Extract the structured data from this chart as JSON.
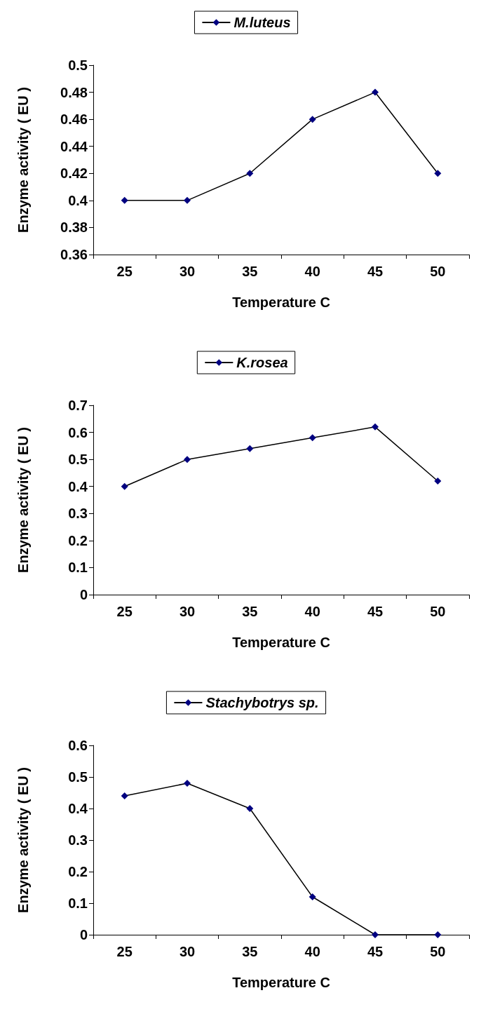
{
  "chart_data": [
    {
      "type": "line",
      "categories": [
        "25",
        "30",
        "35",
        "40",
        "45",
        "50"
      ],
      "xlabel": "Temperature C",
      "ylabel": "Enzyme activity ( EU )",
      "ylim": [
        0.36,
        0.5
      ],
      "yticks": [
        0.36,
        0.38,
        0.4,
        0.42,
        0.44,
        0.46,
        0.48,
        0.5
      ],
      "legend": "top",
      "marker": "diamond",
      "grid": false,
      "series": [
        {
          "name": "M.luteus",
          "color": "#000080",
          "values": [
            0.4,
            0.4,
            0.42,
            0.46,
            0.48,
            0.42
          ]
        }
      ]
    },
    {
      "type": "line",
      "categories": [
        "25",
        "30",
        "35",
        "40",
        "45",
        "50"
      ],
      "xlabel": "Temperature C",
      "ylabel": "Enzyme activity ( EU )",
      "ylim": [
        0,
        0.7
      ],
      "yticks": [
        0,
        0.1,
        0.2,
        0.3,
        0.4,
        0.5,
        0.6,
        0.7
      ],
      "legend": "top",
      "marker": "diamond",
      "grid": false,
      "series": [
        {
          "name": "K.rosea",
          "color": "#000080",
          "values": [
            0.4,
            0.5,
            0.54,
            0.58,
            0.62,
            0.42
          ]
        }
      ]
    },
    {
      "type": "line",
      "categories": [
        "25",
        "30",
        "35",
        "40",
        "45",
        "50"
      ],
      "xlabel": "Temperature C",
      "ylabel": "Enzyme activity ( EU )",
      "ylim": [
        0,
        0.6
      ],
      "yticks": [
        0,
        0.1,
        0.2,
        0.3,
        0.4,
        0.5,
        0.6
      ],
      "legend": "top",
      "marker": "diamond",
      "grid": false,
      "series": [
        {
          "name": "Stachybotrys sp.",
          "color": "#000080",
          "values": [
            0.44,
            0.48,
            0.4,
            0.12,
            0,
            0
          ]
        }
      ]
    }
  ]
}
